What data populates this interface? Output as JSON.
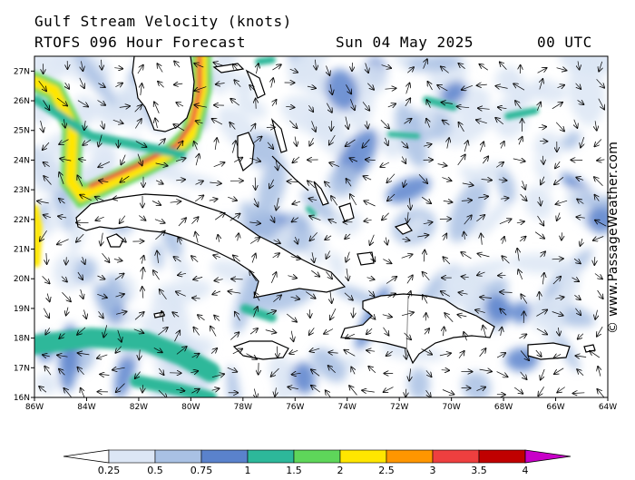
{
  "header": {
    "title": "Gulf Stream Velocity (knots)",
    "model": "RTOFS 096 Hour Forecast",
    "date": "Sun 04 May 2025",
    "time": "00 UTC"
  },
  "credit": "© www.PassageWeather.com",
  "map": {
    "lat_range": [
      16,
      27.5
    ],
    "lon_range": [
      -86,
      -64
    ],
    "lat_ticks": [
      "16N",
      "17N",
      "18N",
      "19N",
      "20N",
      "21N",
      "22N",
      "23N",
      "24N",
      "25N",
      "26N",
      "27N"
    ],
    "lon_ticks": [
      "86W",
      "84W",
      "82W",
      "80W",
      "78W",
      "76W",
      "74W",
      "72W",
      "70W",
      "68W",
      "66W",
      "64W"
    ]
  },
  "colorbar": {
    "labels": [
      "0.25",
      "0.5",
      "0.75",
      "1",
      "1.5",
      "2",
      "2.5",
      "3",
      "3.5",
      "4"
    ],
    "colors": [
      "#dce6f5",
      "#a9c1e4",
      "#5a82cc",
      "#2db89a",
      "#5ed65a",
      "#ffe600",
      "#ff9600",
      "#ee3f3f",
      "#c00000",
      "#c800c8"
    ]
  }
}
